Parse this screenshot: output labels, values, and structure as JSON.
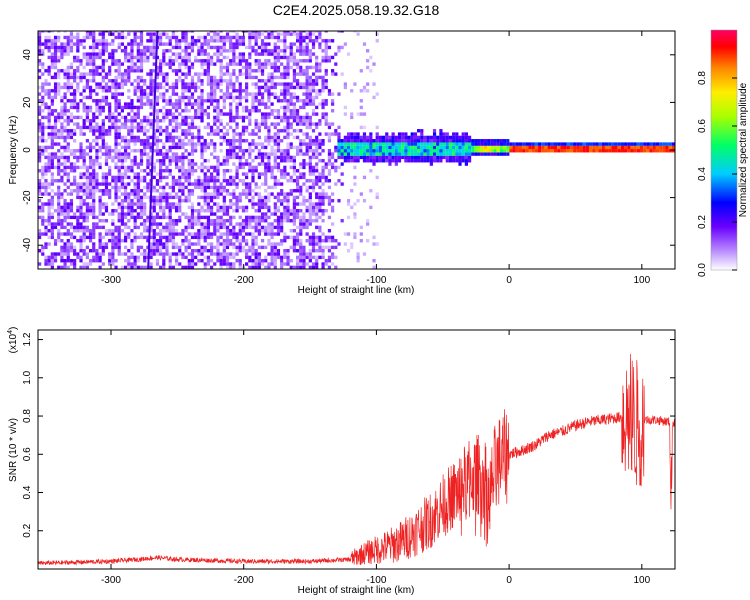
{
  "title": "C2E4.2025.058.19.32.G18",
  "chart_data": [
    {
      "type": "heatmap",
      "xlabel": "Height of straight line (km)",
      "ylabel": "Frequency (Hz)",
      "xlim": [
        -355,
        125
      ],
      "ylim": [
        -50,
        50
      ],
      "xticks": [
        -300,
        -200,
        -100,
        0,
        100
      ],
      "yticks": [
        -40,
        -20,
        0,
        20,
        40
      ],
      "colorbar": {
        "label": "Normalized spectral amplitude",
        "range": [
          0,
          1
        ],
        "ticks": [
          "0.0",
          "0.2",
          "0.4",
          "0.6",
          "0.8"
        ],
        "colors": [
          "#ffffff",
          "#7700ff",
          "#0000ff",
          "#00ffff",
          "#00ff00",
          "#ffff00",
          "#ff9900",
          "#ff0000",
          "#ff0066"
        ]
      },
      "regions": [
        {
          "x": [
            -355,
            -120
          ],
          "freq_range": [
            -50,
            50
          ],
          "amplitude": "0.05-0.2",
          "description_color": "#7a30f0"
        },
        {
          "x": [
            -130,
            -30
          ],
          "freq_center": 0,
          "freq_halfwidth": 6,
          "amplitude": "0.2-0.6"
        },
        {
          "x": [
            0,
            125
          ],
          "freq_center": 0,
          "freq_halfwidth": 1.5,
          "amplitude": "0.8-1.0"
        }
      ],
      "line_features": [
        {
          "x_from": -265,
          "x_to": -272,
          "y_from": 50,
          "y_to": -50
        }
      ]
    },
    {
      "type": "line",
      "xlabel": "Height of straight line (km)",
      "ylabel": "SNR (10 * v/v)",
      "y_exponent": "(x10",
      "y_exponent_power": "4",
      "y_exponent_close": ")",
      "xlim": [
        -355,
        125
      ],
      "ylim": [
        0,
        1.25
      ],
      "xticks": [
        -300,
        -200,
        -100,
        0,
        100
      ],
      "yticks": [
        "0.2",
        "0.4",
        "0.6",
        "0.8",
        "1.0",
        "1.2"
      ],
      "color": "#ee2222",
      "series": [
        {
          "x": [
            -355,
            -300,
            -280,
            -265,
            -250,
            -200,
            -150,
            -120,
            -110,
            -100,
            -90,
            -80,
            -70,
            -60,
            -50,
            -40,
            -30,
            -20,
            -15,
            -10,
            0,
            10,
            20,
            30,
            40,
            50,
            60,
            70,
            80,
            90,
            95,
            100,
            105,
            110,
            120,
            125
          ],
          "y": [
            0.03,
            0.04,
            0.05,
            0.06,
            0.05,
            0.04,
            0.04,
            0.05,
            0.08,
            0.1,
            0.12,
            0.15,
            0.2,
            0.25,
            0.33,
            0.4,
            0.48,
            0.5,
            0.35,
            0.55,
            0.6,
            0.62,
            0.65,
            0.7,
            0.72,
            0.75,
            0.77,
            0.78,
            0.79,
            0.8,
            0.75,
            0.78,
            0.78,
            0.78,
            0.77,
            0.76
          ]
        }
      ]
    }
  ]
}
